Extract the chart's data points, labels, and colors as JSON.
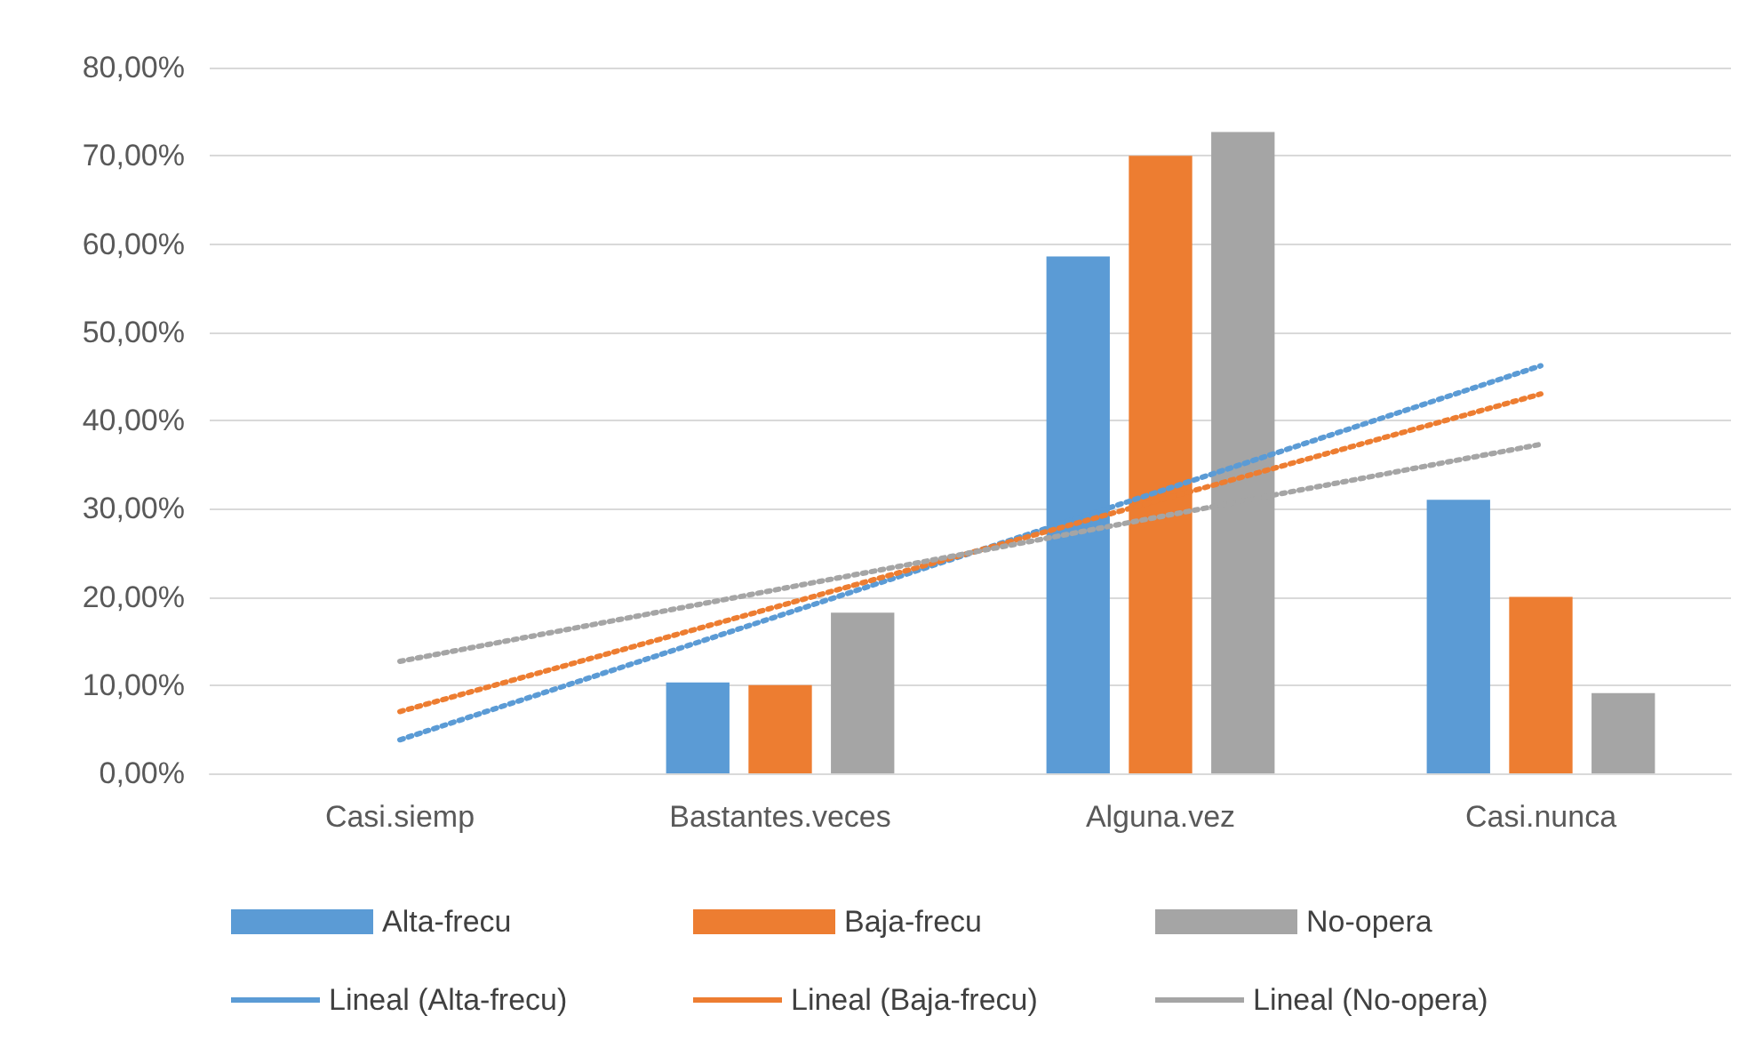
{
  "chart_data": {
    "type": "bar",
    "categories": [
      "Casi.siemp",
      "Bastantes.veces",
      "Alguna.vez",
      "Casi.nunca"
    ],
    "series": [
      {
        "name": "Alta-frecu",
        "color": "#5b9bd5",
        "values": [
          0,
          10.3,
          58.6,
          31.0
        ]
      },
      {
        "name": "Baja-frecu",
        "color": "#ed7d31",
        "values": [
          0,
          10.0,
          70.0,
          20.0
        ]
      },
      {
        "name": "No-opera",
        "color": "#a5a5a5",
        "values": [
          0,
          18.2,
          72.7,
          9.1
        ]
      },
      {
        "name": "Lineal (Alta-frecu)",
        "type": "line",
        "line_style": "dotted",
        "color": "#5b9bd5",
        "values": [
          3.8,
          17.9,
          32.0,
          46.2
        ]
      },
      {
        "name": "Lineal (Baja-frecu)",
        "type": "line",
        "line_style": "dotted",
        "color": "#ed7d31",
        "values": [
          7.0,
          19.0,
          31.0,
          43.0
        ]
      },
      {
        "name": "Lineal (No-opera)",
        "type": "line",
        "line_style": "dotted",
        "color": "#a5a5a5",
        "values": [
          12.7,
          20.9,
          29.1,
          37.3
        ]
      }
    ],
    "ylim": [
      0,
      80
    ],
    "yticks": [
      {
        "value": 0,
        "label": "0,00%"
      },
      {
        "value": 10,
        "label": "10,00%"
      },
      {
        "value": 20,
        "label": "20,00%"
      },
      {
        "value": 30,
        "label": "30,00%"
      },
      {
        "value": 40,
        "label": "40,00%"
      },
      {
        "value": 50,
        "label": "50,00%"
      },
      {
        "value": 60,
        "label": "60,00%"
      },
      {
        "value": 70,
        "label": "70,00%"
      },
      {
        "value": 80,
        "label": "80,00%"
      }
    ],
    "grid": "y",
    "legend": "bottom",
    "marker": "none"
  }
}
